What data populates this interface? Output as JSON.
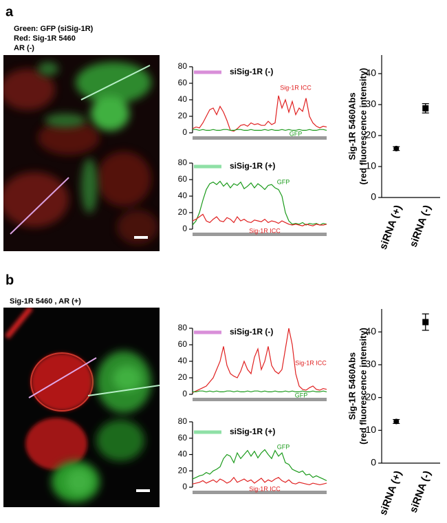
{
  "panels": [
    {
      "label": "a",
      "legend_lines": [
        "Green: GFP (siSig-1R)",
        "Red: Sig-1R 5460",
        "AR (-)"
      ]
    },
    {
      "label": "b",
      "legend_lines": [
        "Sig-1R 5460  , AR (+)"
      ]
    }
  ],
  "chart_data": [
    {
      "type": "line",
      "legend_label": "siSig-1R (-)",
      "legend_color": "#d98fd9",
      "ylim": [
        0,
        80
      ],
      "yticks": [
        0,
        20,
        40,
        60,
        80
      ],
      "series": [
        {
          "name": "Sig-1R ICC",
          "color": "#e02020",
          "values": [
            5,
            7,
            6,
            12,
            20,
            28,
            30,
            22,
            32,
            25,
            15,
            3,
            2,
            5,
            9,
            10,
            8,
            12,
            10,
            11,
            9,
            9,
            14,
            10,
            12,
            45,
            30,
            40,
            25,
            38,
            22,
            30,
            26,
            42,
            20,
            12,
            8,
            6,
            8,
            7
          ]
        },
        {
          "name": "GFP",
          "color": "#1a9a1a",
          "values": [
            4,
            4,
            3,
            4,
            3,
            3,
            4,
            3,
            3,
            4,
            4,
            3,
            3,
            4,
            4,
            3,
            3,
            4,
            3,
            3,
            3,
            4,
            3,
            4,
            3,
            3,
            4,
            3,
            4,
            3,
            3,
            4,
            3,
            3,
            4,
            3,
            3,
            4,
            4,
            3
          ]
        }
      ]
    },
    {
      "type": "line",
      "legend_label": "siSig-1R (+)",
      "legend_color": "#8fe0a6",
      "ylim": [
        0,
        80
      ],
      "yticks": [
        0,
        20,
        40,
        60,
        80
      ],
      "series": [
        {
          "name": "GFP",
          "color": "#1a9a1a",
          "values": [
            5,
            10,
            20,
            35,
            48,
            55,
            57,
            54,
            58,
            52,
            56,
            50,
            55,
            53,
            57,
            49,
            52,
            56,
            50,
            55,
            52,
            48,
            53,
            54,
            50,
            48,
            40,
            20,
            10,
            6,
            7,
            6,
            8,
            5,
            7,
            6,
            7,
            5,
            7,
            6
          ]
        },
        {
          "name": "Sig-1R ICC",
          "color": "#e02020",
          "values": [
            10,
            12,
            15,
            18,
            10,
            8,
            12,
            15,
            10,
            9,
            14,
            12,
            8,
            15,
            10,
            12,
            9,
            8,
            11,
            10,
            9,
            12,
            8,
            10,
            9,
            7,
            10,
            8,
            6,
            5,
            6,
            5,
            4,
            6,
            5,
            4,
            6,
            5,
            5,
            6
          ]
        }
      ]
    },
    {
      "type": "dot",
      "ylabel": [
        "Sig-1R 5460Abs",
        "(red fluorescence intensity)"
      ],
      "categories": [
        "siRNA (+)",
        "siRNA (-)"
      ],
      "values": [
        15.8,
        28.8
      ],
      "errors": [
        0.6,
        1.5
      ],
      "markers": [
        "circle",
        "square"
      ],
      "color": "#000000",
      "ylim": [
        0,
        46
      ],
      "yticks": [
        0,
        10,
        20,
        30,
        40
      ]
    },
    {
      "type": "line",
      "legend_label": "siSig-1R (-)",
      "legend_color": "#d98fd9",
      "ylim": [
        0,
        80
      ],
      "yticks": [
        0,
        20,
        40,
        60,
        80
      ],
      "series": [
        {
          "name": "Sig-1R ICC",
          "color": "#e02020",
          "values": [
            2,
            4,
            6,
            8,
            10,
            15,
            20,
            30,
            40,
            58,
            35,
            25,
            22,
            20,
            28,
            40,
            30,
            25,
            45,
            55,
            30,
            40,
            58,
            35,
            28,
            25,
            30,
            55,
            80,
            60,
            25,
            10,
            6,
            5,
            8,
            10,
            6,
            5,
            7,
            6
          ]
        },
        {
          "name": "GFP",
          "color": "#1a9a1a",
          "values": [
            3,
            3,
            4,
            4,
            3,
            4,
            3,
            4,
            3,
            3,
            4,
            4,
            3,
            4,
            3,
            3,
            4,
            3,
            4,
            4,
            3,
            4,
            3,
            3,
            4,
            3,
            3,
            4,
            3,
            4,
            3,
            3,
            4,
            3,
            3,
            4,
            3,
            3,
            4,
            3
          ]
        }
      ]
    },
    {
      "type": "line",
      "legend_label": "siSig-1R (+)",
      "legend_color": "#8fe0a6",
      "ylim": [
        0,
        80
      ],
      "yticks": [
        0,
        20,
        40,
        60,
        80
      ],
      "series": [
        {
          "name": "GFP",
          "color": "#1a9a1a",
          "values": [
            10,
            12,
            14,
            15,
            18,
            16,
            20,
            22,
            25,
            35,
            40,
            38,
            30,
            42,
            35,
            40,
            45,
            38,
            44,
            36,
            42,
            46,
            40,
            35,
            45,
            38,
            42,
            30,
            28,
            22,
            20,
            18,
            20,
            15,
            16,
            12,
            14,
            12,
            10,
            8
          ]
        },
        {
          "name": "Sig-1R ICC",
          "color": "#e02020",
          "values": [
            4,
            5,
            6,
            8,
            5,
            7,
            9,
            6,
            10,
            8,
            5,
            7,
            12,
            6,
            8,
            10,
            7,
            9,
            5,
            8,
            11,
            6,
            9,
            7,
            10,
            12,
            8,
            6,
            9,
            5,
            4,
            6,
            5,
            4,
            3,
            5,
            4,
            3,
            4,
            5
          ]
        }
      ]
    },
    {
      "type": "dot",
      "ylabel": [
        "Sig-1R 5460Abs",
        "(red fluorescence intensity)"
      ],
      "categories": [
        "siRNA (+)",
        "siRNA (-)"
      ],
      "values": [
        12.7,
        43
      ],
      "errors": [
        0.6,
        2.5
      ],
      "markers": [
        "circle",
        "square"
      ],
      "color": "#000000",
      "ylim": [
        0,
        47
      ],
      "yticks": [
        0,
        10,
        20,
        30,
        40
      ]
    }
  ]
}
